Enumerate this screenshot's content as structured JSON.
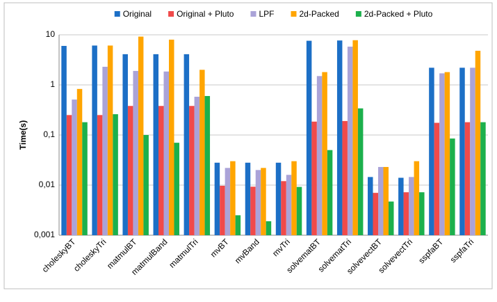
{
  "chart_data": {
    "type": "bar",
    "log_y": true,
    "grid": true,
    "legend": "top",
    "y_label": "Time(s)",
    "categories": [
      "choleskyBT",
      "choleskyTri",
      "matmulBT",
      "matmulBand",
      "matmulTri",
      "mvBT",
      "mvBand",
      "mvTri",
      "solvematBT",
      "solvematTri",
      "solvevectBT",
      "solvevectTri",
      "sspfaBT",
      "sspfaTri"
    ],
    "series": [
      {
        "name": "Original",
        "color": "#1c6fc6",
        "values": [
          6.0,
          6.1,
          4.1,
          4.1,
          4.1,
          0.028,
          0.028,
          0.028,
          7.6,
          7.7,
          0.0145,
          0.014,
          2.2,
          2.2
        ]
      },
      {
        "name": "Original + Pluto",
        "color": "#f04a4a",
        "values": [
          0.25,
          0.25,
          0.38,
          0.38,
          0.38,
          0.0097,
          0.0093,
          0.012,
          0.185,
          0.19,
          0.007,
          0.0072,
          0.175,
          0.18
        ]
      },
      {
        "name": "LPF",
        "color": "#aaa3d8",
        "values": [
          0.51,
          2.3,
          1.9,
          1.85,
          0.58,
          0.022,
          0.02,
          0.016,
          1.5,
          5.8,
          0.023,
          0.0145,
          1.7,
          2.2
        ]
      },
      {
        "name": "2d-Packed",
        "color": "#ffa500",
        "values": [
          0.83,
          6.1,
          9.2,
          8.0,
          2.0,
          0.03,
          0.022,
          0.03,
          1.8,
          7.8,
          0.023,
          0.03,
          1.8,
          4.8
        ]
      },
      {
        "name": "2d-Packed + Pluto",
        "color": "#1cb04c",
        "values": [
          0.18,
          0.26,
          0.1,
          0.07,
          0.6,
          0.0025,
          0.0019,
          0.0092,
          0.05,
          0.34,
          0.0047,
          0.0072,
          0.085,
          0.18
        ]
      }
    ],
    "ylim": [
      0.001,
      10
    ],
    "yticks": [
      {
        "value": 0.001,
        "label": "0,001"
      },
      {
        "value": 0.01,
        "label": "0,01"
      },
      {
        "value": 0.1,
        "label": "0,1"
      },
      1,
      10
    ]
  }
}
